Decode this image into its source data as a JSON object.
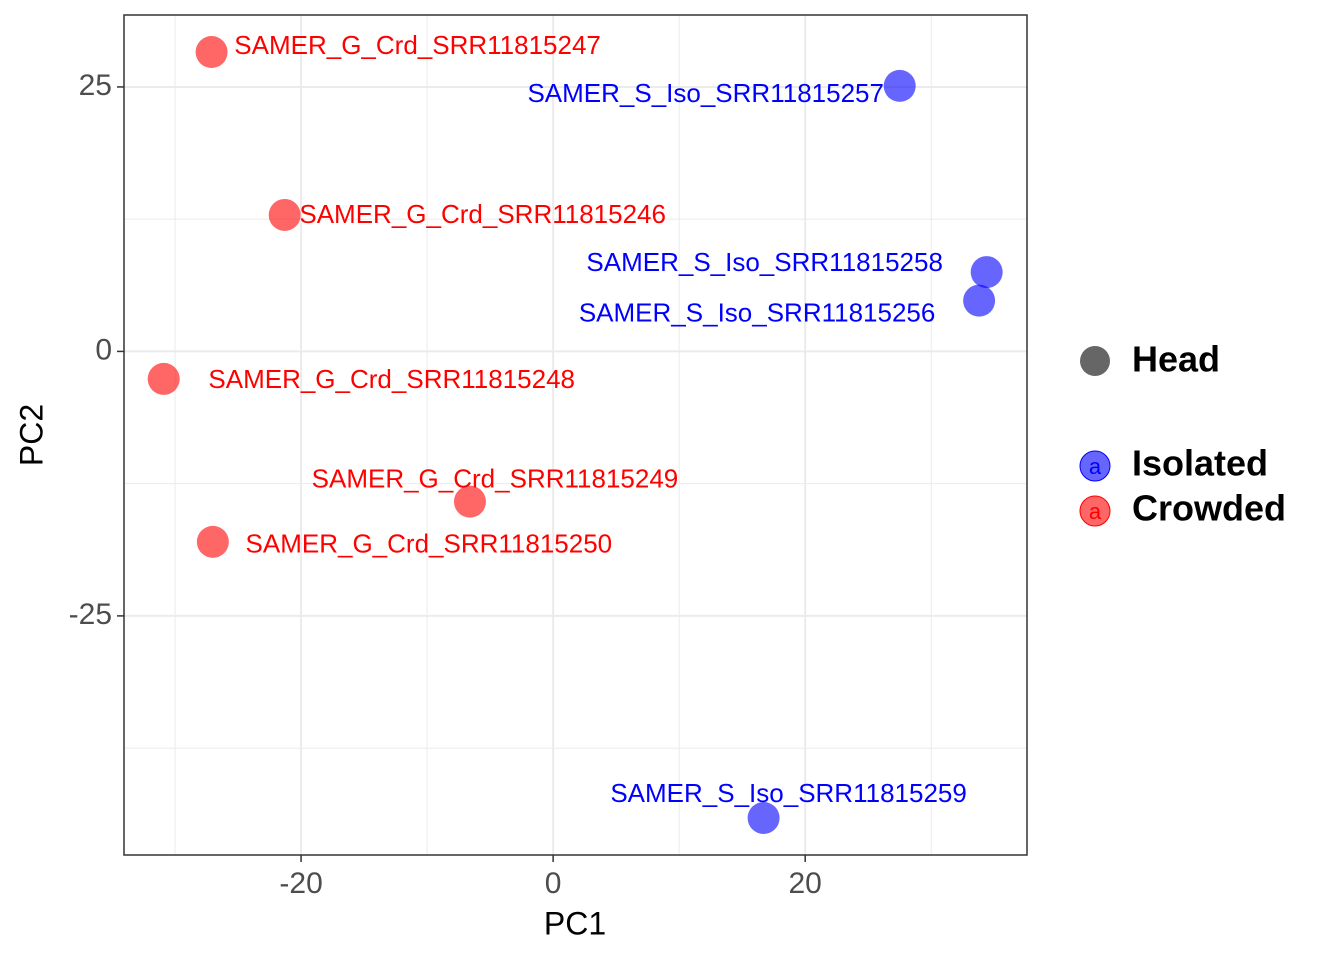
{
  "chart_data": {
    "type": "scatter",
    "x_label": "PC1",
    "y_label": "PC2",
    "xlim": [
      -34.05,
      37.6
    ],
    "ylim": [
      -47.6,
      31.8
    ],
    "xticks": [
      -20,
      0,
      20
    ],
    "yticks": [
      -25,
      0,
      25
    ],
    "grid": true,
    "shape_legend": "Head",
    "shape_legend_color": "#666666",
    "series": [
      {
        "name": "Isolated",
        "color": "#0000ff",
        "x": [
          27.5,
          34.4,
          33.8,
          16.7
        ],
        "y": [
          25.1,
          7.5,
          4.8,
          -44.1
        ],
        "labels": [
          "SAMER_S_Iso_SRR11815257",
          "SAMER_S_Iso_SRR11815258",
          "SAMER_S_Iso_SRR11815256",
          "SAMER_S_Iso_SRR11815259"
        ]
      },
      {
        "name": "Crowded",
        "color": "#ff0000",
        "x": [
          -27.1,
          -21.3,
          -30.9,
          -6.6,
          -27.0
        ],
        "y": [
          28.3,
          12.9,
          -2.6,
          -14.2,
          -18.0
        ],
        "labels": [
          "SAMER_G_Crd_SRR11815247",
          "SAMER_G_Crd_SRR11815246",
          "SAMER_G_Crd_SRR11815248",
          "SAMER_G_Crd_SRR11815249",
          "SAMER_G_Crd_SRR11815250"
        ]
      }
    ]
  }
}
